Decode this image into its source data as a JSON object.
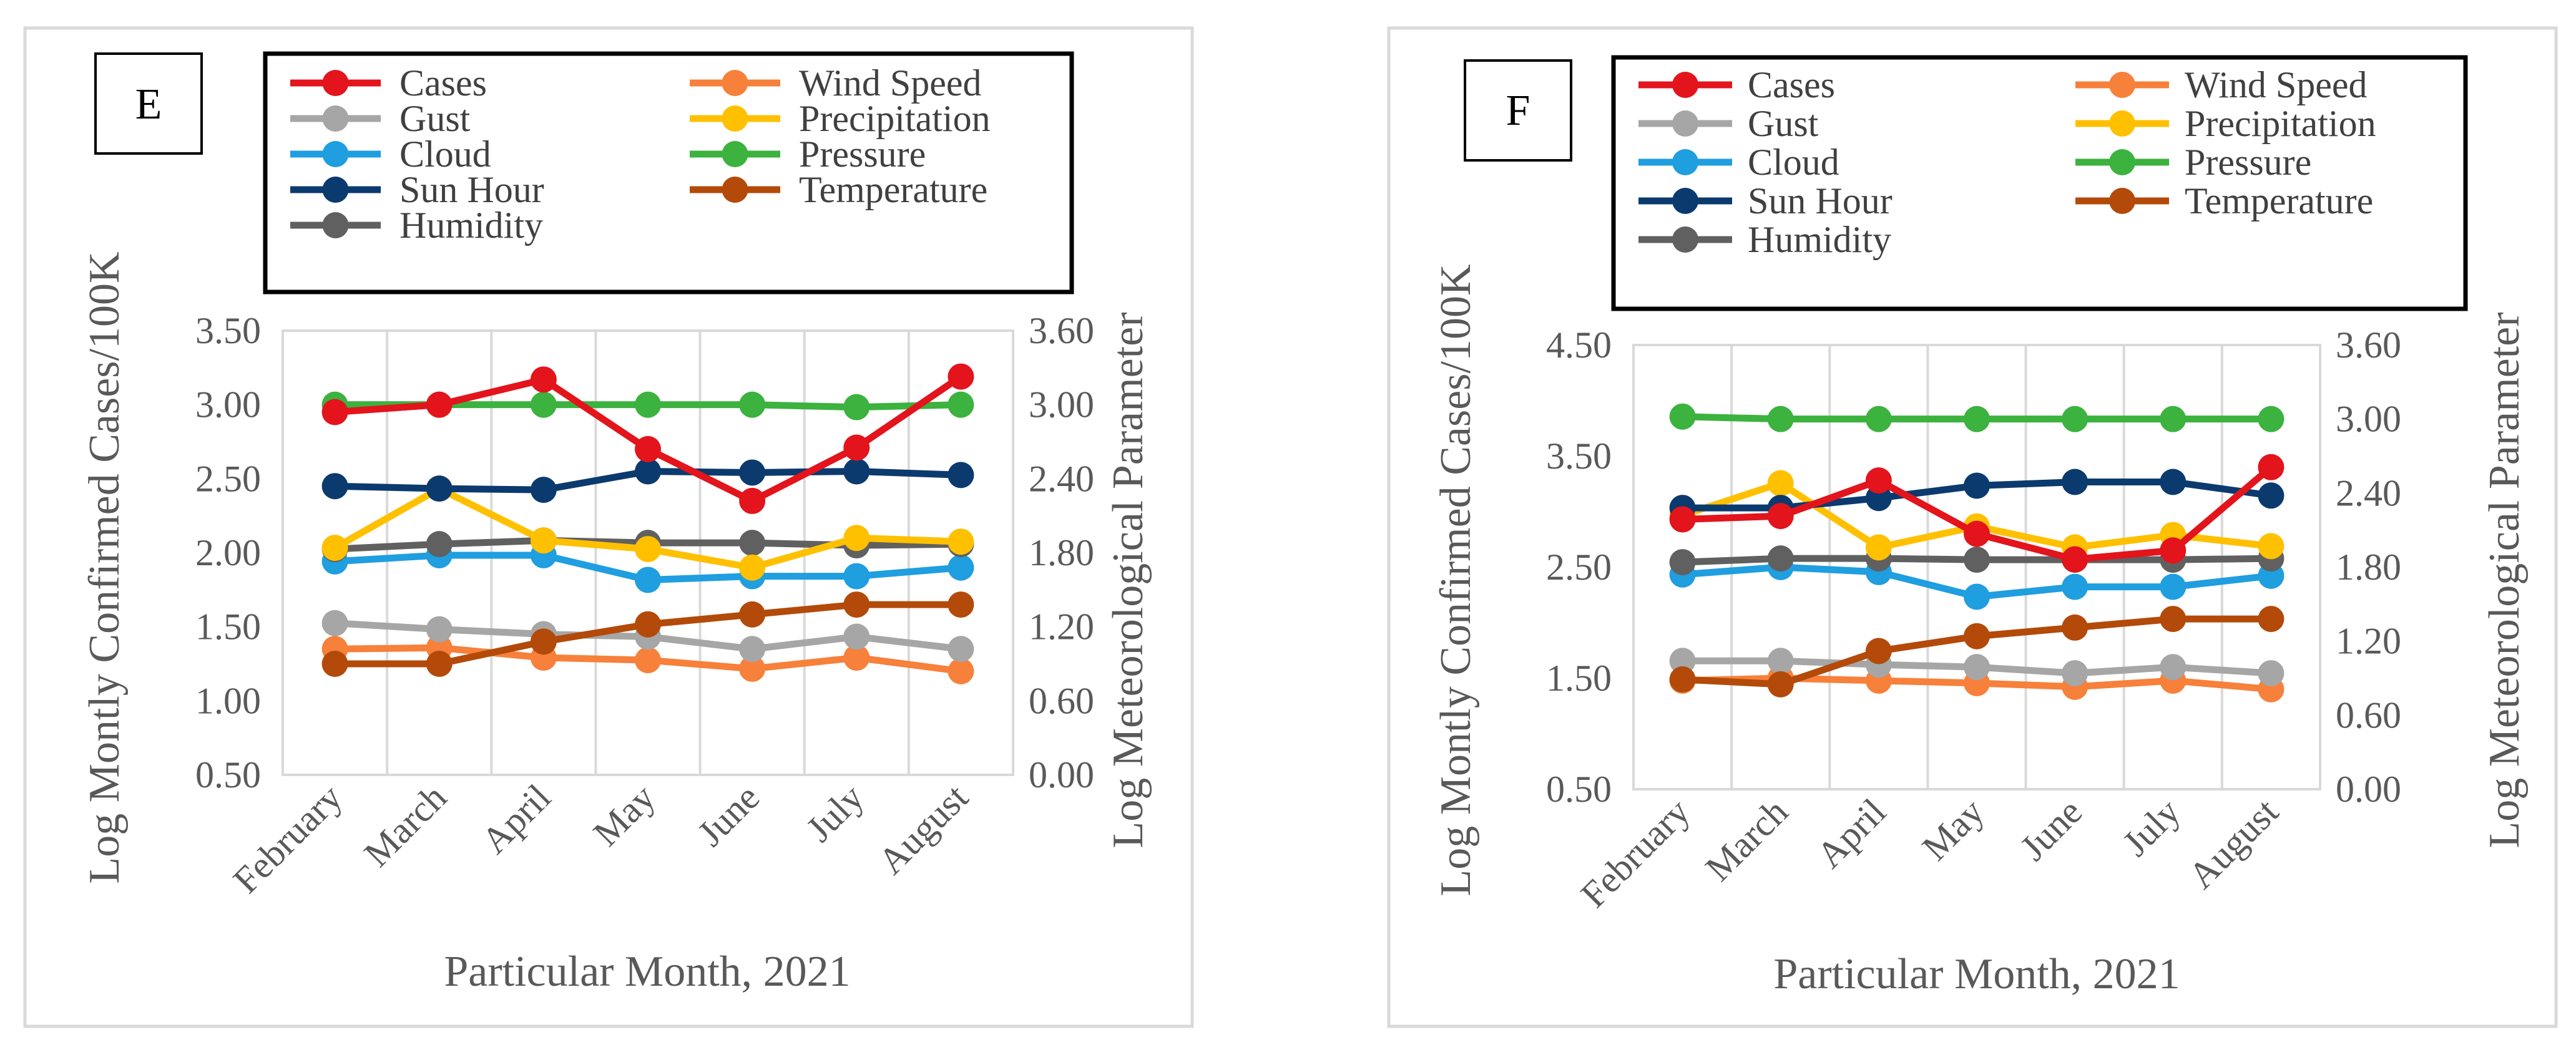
{
  "colors": {
    "Cases": "#e3141c",
    "Wind Speed": "#f7803a",
    "Gust": "#a6a6a6",
    "Precipitation": "#ffc000",
    "Cloud": "#1f9ee0",
    "Pressure": "#3cb23f",
    "Sun Hour": "#0b3a6e",
    "Temperature": "#b34a0a",
    "Humidity": "#606060"
  },
  "chart_data": [
    {
      "type": "line",
      "panel_label": "E",
      "legend": [
        "Cases",
        "Wind Speed",
        "Gust",
        "Precipitation",
        "Cloud",
        "Pressure",
        "Sun Hour",
        "Temperature",
        "Humidity"
      ],
      "categories": [
        "February",
        "March",
        "April",
        "May",
        "June",
        "July",
        "August"
      ],
      "xlabel": "Particular Month, 2021",
      "ylabel": "Log Montly Confirmed Cases/100K",
      "y2label": "Log Meteorological Parameter",
      "ylim": [
        0.5,
        3.5
      ],
      "yticks": [
        "3.50",
        "3.00",
        "2.50",
        "2.00",
        "1.50",
        "1.00",
        "0.50"
      ],
      "y2lim": [
        0.0,
        3.6
      ],
      "y2ticks": [
        "3.60",
        "3.00",
        "2.40",
        "1.80",
        "1.20",
        "0.60",
        "0.00"
      ],
      "series": [
        {
          "name": "Cases",
          "axis": "left",
          "values": [
            2.95,
            3.0,
            3.17,
            2.7,
            2.35,
            2.71,
            3.19
          ]
        },
        {
          "name": "Wind Speed",
          "axis": "right",
          "values": [
            1.02,
            1.03,
            0.95,
            0.93,
            0.86,
            0.95,
            0.84
          ]
        },
        {
          "name": "Gust",
          "axis": "right",
          "values": [
            1.23,
            1.18,
            1.14,
            1.12,
            1.02,
            1.12,
            1.02
          ]
        },
        {
          "name": "Precipitation",
          "axis": "right",
          "values": [
            1.84,
            2.32,
            1.9,
            1.83,
            1.68,
            1.92,
            1.89
          ]
        },
        {
          "name": "Cloud",
          "axis": "right",
          "values": [
            1.73,
            1.78,
            1.78,
            1.58,
            1.61,
            1.61,
            1.68
          ]
        },
        {
          "name": "Pressure",
          "axis": "right",
          "values": [
            3.0,
            3.0,
            3.0,
            3.0,
            3.0,
            2.98,
            3.0
          ]
        },
        {
          "name": "Sun Hour",
          "axis": "right",
          "values": [
            2.34,
            2.32,
            2.31,
            2.46,
            2.45,
            2.46,
            2.43
          ]
        },
        {
          "name": "Temperature",
          "axis": "right",
          "values": [
            0.9,
            0.9,
            1.08,
            1.22,
            1.3,
            1.38,
            1.38
          ]
        },
        {
          "name": "Humidity",
          "axis": "right",
          "values": [
            1.83,
            1.87,
            1.9,
            1.88,
            1.88,
            1.86,
            1.87
          ]
        }
      ]
    },
    {
      "type": "line",
      "panel_label": "F",
      "legend": [
        "Cases",
        "Wind Speed",
        "Gust",
        "Precipitation",
        "Cloud",
        "Pressure",
        "Sun Hour",
        "Temperature",
        "Humidity"
      ],
      "categories": [
        "February",
        "March",
        "April",
        "May",
        "June",
        "July",
        "August"
      ],
      "xlabel": "Particular Month, 2021",
      "ylabel": "Log Montly Confirmed Cases/100K",
      "y2label": "Log Meteorological Parameter",
      "ylim": [
        0.5,
        4.5
      ],
      "yticks": [
        "4.50",
        "3.50",
        "2.50",
        "1.50",
        "0.50"
      ],
      "y2lim": [
        0.0,
        3.6
      ],
      "y2ticks": [
        "3.60",
        "3.00",
        "2.40",
        "1.80",
        "1.20",
        "0.60",
        "0.00"
      ],
      "series": [
        {
          "name": "Cases",
          "axis": "left",
          "values": [
            2.93,
            2.96,
            3.28,
            2.8,
            2.57,
            2.65,
            3.4
          ]
        },
        {
          "name": "Wind Speed",
          "axis": "right",
          "values": [
            0.88,
            0.9,
            0.88,
            0.86,
            0.83,
            0.88,
            0.81
          ]
        },
        {
          "name": "Gust",
          "axis": "right",
          "values": [
            1.04,
            1.04,
            1.01,
            0.99,
            0.94,
            0.99,
            0.94
          ]
        },
        {
          "name": "Precipitation",
          "axis": "right",
          "values": [
            2.22,
            2.48,
            1.96,
            2.13,
            1.96,
            2.06,
            1.97
          ]
        },
        {
          "name": "Cloud",
          "axis": "right",
          "values": [
            1.74,
            1.8,
            1.76,
            1.56,
            1.64,
            1.64,
            1.73
          ]
        },
        {
          "name": "Pressure",
          "axis": "right",
          "values": [
            3.02,
            3.0,
            3.0,
            3.0,
            3.0,
            3.0,
            3.0
          ]
        },
        {
          "name": "Sun Hour",
          "axis": "right",
          "values": [
            2.28,
            2.28,
            2.36,
            2.46,
            2.49,
            2.49,
            2.38
          ]
        },
        {
          "name": "Temperature",
          "axis": "right",
          "values": [
            0.89,
            0.85,
            1.12,
            1.24,
            1.31,
            1.38,
            1.38
          ]
        },
        {
          "name": "Humidity",
          "axis": "right",
          "values": [
            1.84,
            1.87,
            1.87,
            1.86,
            1.86,
            1.86,
            1.87
          ]
        }
      ]
    }
  ]
}
